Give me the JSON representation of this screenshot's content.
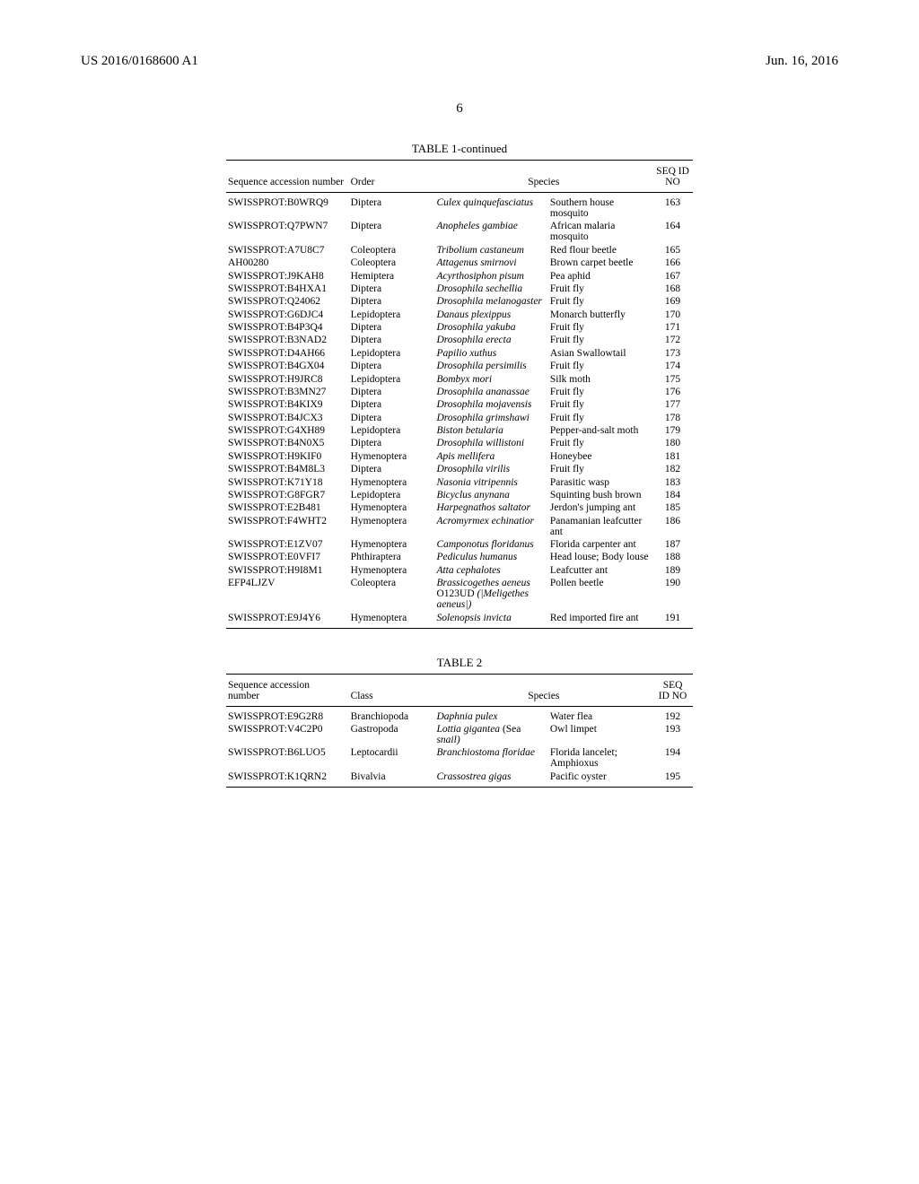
{
  "header": {
    "doc_number": "US 2016/0168600 A1",
    "date": "Jun. 16, 2016",
    "page": "6"
  },
  "table1": {
    "title": "TABLE 1-continued",
    "columns": {
      "acc": "Sequence accession number",
      "order": "Order",
      "species": "Species",
      "seqid_l1": "SEQ ID",
      "seqid_l2": "NO"
    },
    "rows": [
      {
        "acc": "SWISSPROT:B0WRQ9",
        "order": "Diptera",
        "sp1": "Culex quinquefasciatus",
        "sp2": "Southern house mosquito",
        "seq": "163"
      },
      {
        "acc": "SWISSPROT:Q7PWN7",
        "order": "Diptera",
        "sp1": "Anopheles gambiae",
        "sp2": "African malaria mosquito",
        "seq": "164"
      },
      {
        "acc": "SWISSPROT:A7U8C7",
        "order": "Coleoptera",
        "sp1": "Tribolium castaneum",
        "sp2": "Red flour beetle",
        "seq": "165"
      },
      {
        "acc": "AH00280",
        "order": "Coleoptera",
        "sp1": "Attagenus smirnovi",
        "sp2": "Brown carpet beetle",
        "seq": "166"
      },
      {
        "acc": "SWISSPROT:J9KAH8",
        "order": "Hemiptera",
        "sp1": "Acyrthosiphon pisum",
        "sp2": "Pea aphid",
        "seq": "167"
      },
      {
        "acc": "SWISSPROT:B4HXA1",
        "order": "Diptera",
        "sp1": "Drosophila sechellia",
        "sp2": "Fruit fly",
        "seq": "168"
      },
      {
        "acc": "SWISSPROT:Q24062",
        "order": "Diptera",
        "sp1": "Drosophila melanogaster",
        "sp2": "Fruit fly",
        "seq": "169"
      },
      {
        "acc": "SWISSPROT:G6DJC4",
        "order": "Lepidoptera",
        "sp1": "Danaus plexippus",
        "sp2": "Monarch butterfly",
        "seq": "170"
      },
      {
        "acc": "SWISSPROT:B4P3Q4",
        "order": "Diptera",
        "sp1": "Drosophila yakuba",
        "sp2": "Fruit fly",
        "seq": "171"
      },
      {
        "acc": "SWISSPROT:B3NAD2",
        "order": "Diptera",
        "sp1": "Drosophila erecta",
        "sp2": "Fruit fly",
        "seq": "172"
      },
      {
        "acc": "SWISSPROT:D4AH66",
        "order": "Lepidoptera",
        "sp1": "Papilio xuthus",
        "sp2": "Asian Swallowtail",
        "seq": "173"
      },
      {
        "acc": "SWISSPROT:B4GX04",
        "order": "Diptera",
        "sp1": "Drosophila persimilis",
        "sp2": "Fruit fly",
        "seq": "174"
      },
      {
        "acc": "SWISSPROT:H9JRC8",
        "order": "Lepidoptera",
        "sp1": "Bombyx mori",
        "sp2": "Silk moth",
        "seq": "175"
      },
      {
        "acc": "SWISSPROT:B3MN27",
        "order": "Diptera",
        "sp1": "Drosophila ananassae",
        "sp2": "Fruit fly",
        "seq": "176"
      },
      {
        "acc": "SWISSPROT:B4KIX9",
        "order": "Diptera",
        "sp1": "Drosophila mojavensis",
        "sp2": "Fruit fly",
        "seq": "177"
      },
      {
        "acc": "SWISSPROT:B4JCX3",
        "order": "Diptera",
        "sp1": "Drosophila grimshawi",
        "sp2": "Fruit fly",
        "seq": "178"
      },
      {
        "acc": "SWISSPROT:G4XH89",
        "order": "Lepidoptera",
        "sp1": "Biston betularia",
        "sp2": "Pepper-and-salt moth",
        "seq": "179"
      },
      {
        "acc": "SWISSPROT:B4N0X5",
        "order": "Diptera",
        "sp1": "Drosophila willistoni",
        "sp2": "Fruit fly",
        "seq": "180"
      },
      {
        "acc": "SWISSPROT:H9KIF0",
        "order": "Hymenoptera",
        "sp1": "Apis mellifera",
        "sp2": "Honeybee",
        "seq": "181"
      },
      {
        "acc": "SWISSPROT:B4M8L3",
        "order": "Diptera",
        "sp1": "Drosophila virilis",
        "sp2": "Fruit fly",
        "seq": "182"
      },
      {
        "acc": "SWISSPROT:K71Y18",
        "order": "Hymenoptera",
        "sp1": "Nasonia vitripennis",
        "sp2": "Parasitic wasp",
        "seq": "183"
      },
      {
        "acc": "SWISSPROT:G8FGR7",
        "order": "Lepidoptera",
        "sp1": "Bicyclus anynana",
        "sp2": "Squinting bush brown",
        "seq": "184"
      },
      {
        "acc": "SWISSPROT:E2B481",
        "order": "Hymenoptera",
        "sp1": "Harpegnathos saltator",
        "sp2": "Jerdon's jumping ant",
        "seq": "185"
      },
      {
        "acc": "SWISSPROT:F4WHT2",
        "order": "Hymenoptera",
        "sp1": "Acromyrmex echinatior",
        "sp2": "Panamanian leafcutter ant",
        "seq": "186"
      },
      {
        "acc": "SWISSPROT:E1ZV07",
        "order": "Hymenoptera",
        "sp1": "Camponotus floridanus",
        "sp2": "Florida carpenter ant",
        "seq": "187"
      },
      {
        "acc": "SWISSPROT:E0VFI7",
        "order": "Phthiraptera",
        "sp1": "Pediculus humanus",
        "sp2": "Head louse; Body louse",
        "seq": "188"
      },
      {
        "acc": "SWISSPROT:H9I8M1",
        "order": "Hymenoptera",
        "sp1": "Atta cephalotes",
        "sp2": "Leafcutter ant",
        "seq": "189"
      },
      {
        "acc": "EFP4LJZV",
        "order": "Coleoptera",
        "sp1": "Brassicogethes aeneus |O123UD (|Meligethes aeneus|)",
        "sp2": "Pollen beetle",
        "seq": "190"
      },
      {
        "acc": "SWISSPROT:E9J4Y6",
        "order": "Hymenoptera",
        "sp1": "Solenopsis invicta",
        "sp2": "Red imported fire ant",
        "seq": "191"
      }
    ]
  },
  "table2": {
    "title": "TABLE 2",
    "columns": {
      "acc_l1": "Sequence accession",
      "acc_l2": "number",
      "class": "Class",
      "species": "Species",
      "seqid_l1": "SEQ",
      "seqid_l2": "ID NO"
    },
    "rows": [
      {
        "acc": "SWISSPROT:E9G2R8",
        "class": "Branchiopoda",
        "sp1": "Daphnia pulex",
        "sp2": "Water flea",
        "seq": "192"
      },
      {
        "acc": "SWISSPROT:V4C2P0",
        "class": "Gastropoda",
        "sp1": "Lottia gigantea |(Sea snail)",
        "sp2": "Owl limpet",
        "seq": "193"
      },
      {
        "acc": "SWISSPROT:B6LUO5",
        "class": "Leptocardii",
        "sp1": "Branchiostoma floridae",
        "sp2": "Florida lancelet; Amphioxus",
        "seq": "194"
      },
      {
        "acc": "SWISSPROT:K1QRN2",
        "class": "Bivalvia",
        "sp1": "Crassostrea gigas",
        "sp2": "Pacific oyster",
        "seq": "195"
      }
    ]
  }
}
